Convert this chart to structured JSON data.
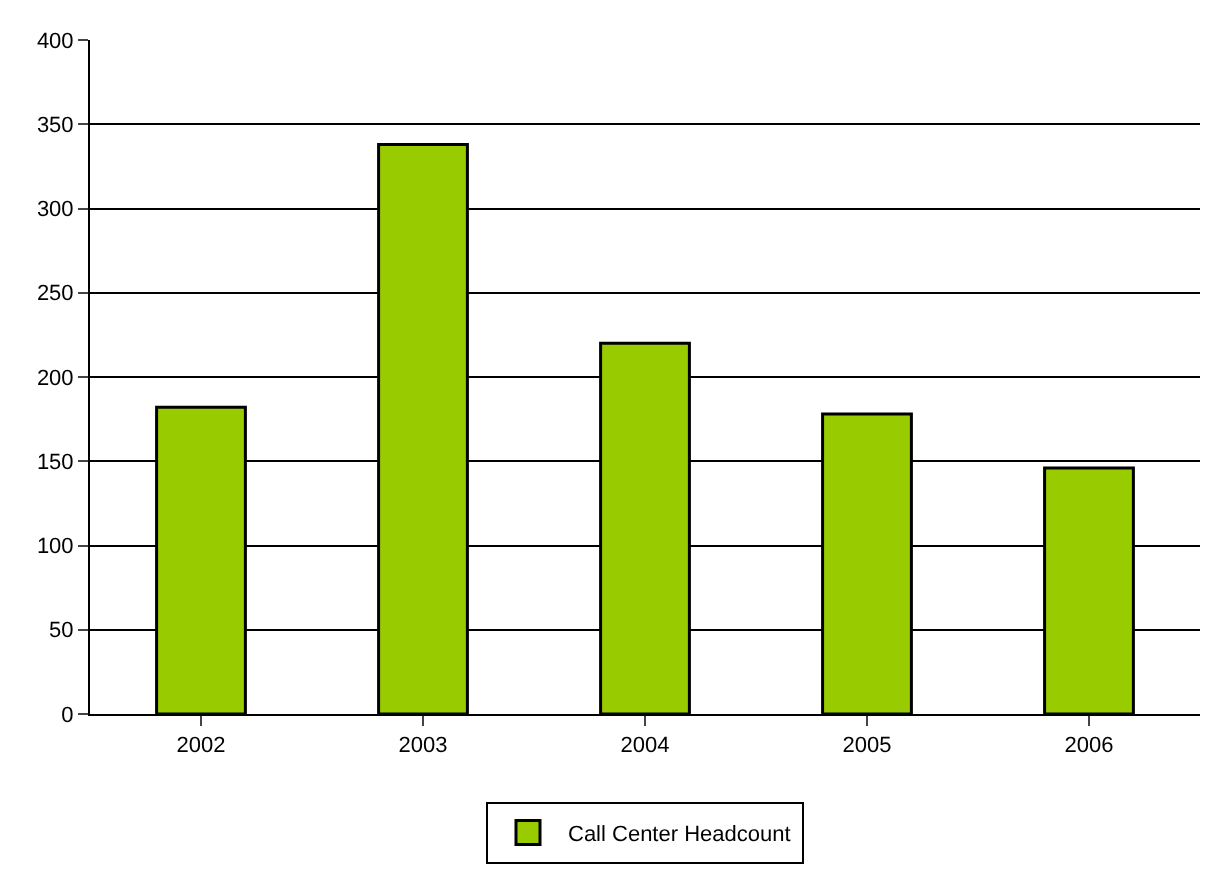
{
  "chart_data": {
    "type": "bar",
    "categories": [
      "2002",
      "2003",
      "2004",
      "2005",
      "2006"
    ],
    "series": [
      {
        "name": "Call Center Headcount",
        "color": "#99cc00",
        "values": [
          182,
          338,
          220,
          178,
          146
        ]
      }
    ],
    "ylim": [
      0,
      400
    ],
    "yticks": [
      0,
      50,
      100,
      150,
      200,
      250,
      300,
      350,
      400
    ],
    "grid": "y",
    "legend": "bottom"
  }
}
